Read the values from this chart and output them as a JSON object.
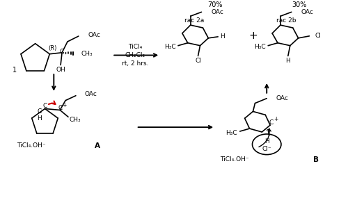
{
  "bg_color": "#ffffff",
  "figsize": [
    5.0,
    2.98
  ],
  "dpi": 100,
  "labels": {
    "compound1": "1",
    "TiCl4": "TiCl₄",
    "CH2Cl2": "CH₂Cl₂",
    "rt": "rt, 2 hrs.",
    "percent_2a": "70%",
    "percent_2b": "30%",
    "rac2a": "rac 2a",
    "rac2b": "rac 2b",
    "label_A": "A",
    "label_B": "B",
    "OAc": "OAc",
    "R_config": "(R)",
    "CH3": "CH₃",
    "OH": "OH",
    "TiCl4OH": "TiCl₄.OH⁻",
    "Cl": "Cl",
    "Cl_minus": "Cl⁻",
    "H": "H",
    "H3C": "H₃C",
    "C": "C",
    "Cplus": "C",
    "plus": "+"
  },
  "colors": {
    "black": "#000000",
    "red": "#cc0000",
    "white": "#ffffff"
  }
}
